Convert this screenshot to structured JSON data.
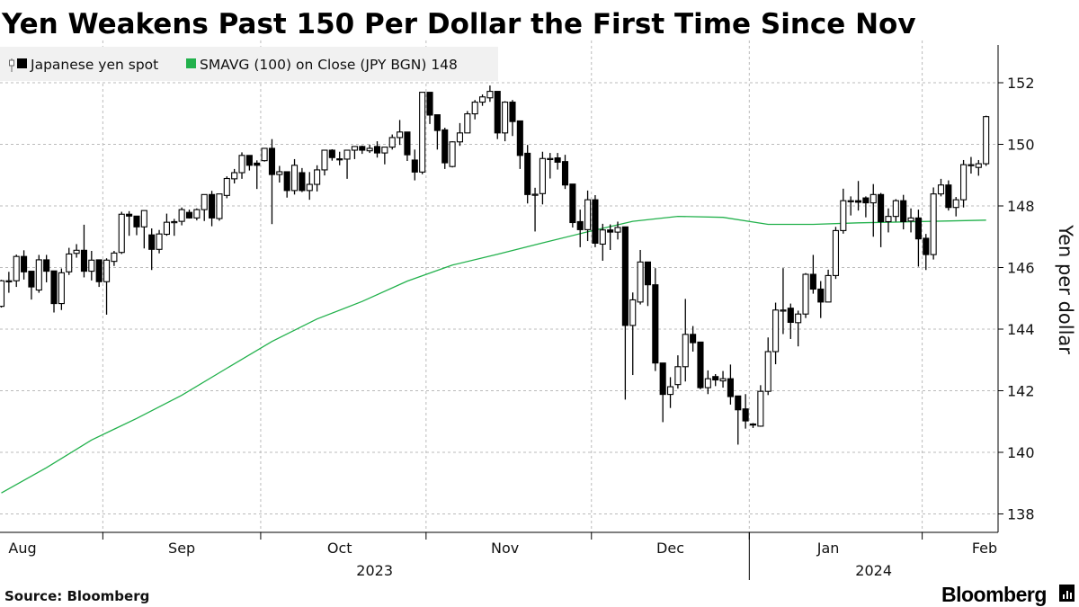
{
  "title": "Yen Weakens Past 150 Per Dollar the First Time Since Nov",
  "legend": [
    {
      "label": "Japanese yen spot",
      "color": "#000000",
      "icon": "candlestick-icon"
    },
    {
      "label": "SMAVG (100)  on Close (JPY BGN) 148",
      "color": "#22b14c"
    }
  ],
  "source": "Source: Bloomberg",
  "logo": "Bloomberg",
  "chart_data": {
    "type": "candlestick",
    "title": "Yen Weakens Past 150 Per Dollar the First Time Since Nov",
    "ylabel": "Yen per dollar",
    "ylim": [
      137.5,
      153.5
    ],
    "yticks": [
      "138",
      "140",
      "142",
      "144",
      "146",
      "148",
      "150",
      "152"
    ],
    "y_axis_side": "right",
    "grid": true,
    "legend_position": "top-left",
    "x_months": [
      {
        "label": "Aug",
        "month": "2023-08"
      },
      {
        "label": "Sep",
        "month": "2023-09"
      },
      {
        "label": "Oct",
        "month": "2023-10"
      },
      {
        "label": "Nov",
        "month": "2023-11"
      },
      {
        "label": "Dec",
        "month": "2023-12"
      },
      {
        "label": "Jan",
        "month": "2024-01"
      },
      {
        "label": "Feb",
        "month": "2024-02"
      }
    ],
    "x_years": [
      "2023",
      "2024"
    ],
    "up_color": "#ffffff",
    "down_color": "#000000",
    "sma_color": "#22b14c",
    "candles_fields": [
      "date",
      "open",
      "high",
      "low",
      "close"
    ],
    "candles": [
      [
        "2023-08-14",
        144.74,
        145.6,
        144.7,
        145.57
      ],
      [
        "2023-08-15",
        145.57,
        145.86,
        145.18,
        145.57
      ],
      [
        "2023-08-16",
        145.57,
        146.42,
        145.37,
        146.36
      ],
      [
        "2023-08-17",
        146.36,
        146.56,
        145.61,
        145.86
      ],
      [
        "2023-08-18",
        145.88,
        145.88,
        144.96,
        145.37
      ],
      [
        "2023-08-21",
        145.27,
        146.41,
        145.18,
        146.25
      ],
      [
        "2023-08-22",
        146.25,
        146.41,
        145.52,
        145.88
      ],
      [
        "2023-08-23",
        145.89,
        145.89,
        144.54,
        144.83
      ],
      [
        "2023-08-24",
        144.83,
        145.97,
        144.62,
        145.83
      ],
      [
        "2023-08-25",
        145.86,
        146.64,
        145.76,
        146.44
      ],
      [
        "2023-08-28",
        146.46,
        146.76,
        146.32,
        146.56
      ],
      [
        "2023-08-29",
        146.56,
        147.39,
        145.68,
        145.88
      ],
      [
        "2023-08-30",
        145.88,
        146.54,
        145.58,
        146.24
      ],
      [
        "2023-08-31",
        146.25,
        146.25,
        145.37,
        145.54
      ],
      [
        "2023-09-01",
        145.54,
        146.3,
        144.47,
        146.24
      ],
      [
        "2023-09-04",
        146.2,
        146.54,
        146.05,
        146.47
      ],
      [
        "2023-09-05",
        146.49,
        147.81,
        146.44,
        147.73
      ],
      [
        "2023-09-06",
        147.73,
        147.83,
        147.03,
        147.67
      ],
      [
        "2023-09-07",
        147.67,
        147.67,
        147.05,
        147.32
      ],
      [
        "2023-09-08",
        147.32,
        147.85,
        146.62,
        147.85
      ],
      [
        "2023-09-11",
        147.06,
        147.27,
        145.92,
        146.59
      ],
      [
        "2023-09-12",
        146.59,
        147.22,
        146.46,
        147.09
      ],
      [
        "2023-09-13",
        147.08,
        147.75,
        147.03,
        147.47
      ],
      [
        "2023-09-14",
        147.47,
        147.58,
        147.03,
        147.49
      ],
      [
        "2023-09-15",
        147.5,
        147.95,
        147.37,
        147.88
      ],
      [
        "2023-09-18",
        147.79,
        147.88,
        147.59,
        147.61
      ],
      [
        "2023-09-19",
        147.61,
        147.92,
        147.53,
        147.88
      ],
      [
        "2023-09-20",
        147.88,
        148.37,
        147.51,
        148.37
      ],
      [
        "2023-09-21",
        148.37,
        148.49,
        147.34,
        147.61
      ],
      [
        "2023-09-22",
        147.59,
        148.39,
        147.52,
        148.39
      ],
      [
        "2023-09-25",
        148.34,
        148.96,
        148.25,
        148.89
      ],
      [
        "2023-09-26",
        148.88,
        149.2,
        148.73,
        149.08
      ],
      [
        "2023-09-27",
        149.08,
        149.74,
        148.88,
        149.64
      ],
      [
        "2023-09-28",
        149.64,
        149.64,
        149.15,
        149.32
      ],
      [
        "2023-09-29",
        149.39,
        149.48,
        148.55,
        149.32
      ],
      [
        "2023-10-02",
        149.47,
        149.87,
        149.44,
        149.87
      ],
      [
        "2023-10-03",
        149.87,
        150.17,
        147.41,
        149.02
      ],
      [
        "2023-10-04",
        149.02,
        149.3,
        148.76,
        149.11
      ],
      [
        "2023-10-05",
        149.11,
        149.11,
        148.27,
        148.5
      ],
      [
        "2023-10-06",
        148.5,
        149.52,
        148.37,
        149.32
      ],
      [
        "2023-10-09",
        149.08,
        149.23,
        148.45,
        148.5
      ],
      [
        "2023-10-10",
        148.5,
        149.1,
        148.2,
        148.7
      ],
      [
        "2023-10-11",
        148.7,
        149.32,
        148.47,
        149.17
      ],
      [
        "2023-10-12",
        149.17,
        149.81,
        148.99,
        149.81
      ],
      [
        "2023-10-13",
        149.81,
        149.84,
        149.47,
        149.57
      ],
      [
        "2023-10-16",
        149.53,
        149.76,
        149.32,
        149.52
      ],
      [
        "2023-10-17",
        149.52,
        149.81,
        148.88,
        149.81
      ],
      [
        "2023-10-18",
        149.81,
        149.93,
        149.52,
        149.93
      ],
      [
        "2023-10-19",
        149.93,
        149.96,
        149.69,
        149.81
      ],
      [
        "2023-10-20",
        149.79,
        149.99,
        149.72,
        149.87
      ],
      [
        "2023-10-23",
        149.93,
        150.1,
        149.57,
        149.72
      ],
      [
        "2023-10-24",
        149.72,
        149.91,
        149.35,
        149.91
      ],
      [
        "2023-10-25",
        149.91,
        150.32,
        149.83,
        150.22
      ],
      [
        "2023-10-26",
        150.22,
        150.79,
        149.98,
        150.4
      ],
      [
        "2023-10-27",
        150.4,
        150.4,
        149.46,
        149.66
      ],
      [
        "2023-10-30",
        149.49,
        149.83,
        148.83,
        149.1
      ],
      [
        "2023-10-31",
        149.1,
        151.69,
        149.03,
        151.69
      ],
      [
        "2023-11-01",
        151.69,
        151.69,
        150.66,
        150.95
      ],
      [
        "2023-11-02",
        150.96,
        150.96,
        149.83,
        150.45
      ],
      [
        "2023-11-03",
        150.47,
        150.54,
        149.2,
        149.4
      ],
      [
        "2023-11-06",
        149.28,
        150.1,
        149.25,
        150.08
      ],
      [
        "2023-11-07",
        150.08,
        150.69,
        149.95,
        150.37
      ],
      [
        "2023-11-08",
        150.37,
        151.08,
        150.37,
        150.99
      ],
      [
        "2023-11-09",
        150.99,
        151.44,
        150.81,
        151.37
      ],
      [
        "2023-11-10",
        151.37,
        151.62,
        151.25,
        151.54
      ],
      [
        "2023-11-13",
        151.51,
        151.91,
        151.38,
        151.72
      ],
      [
        "2023-11-14",
        151.72,
        151.72,
        150.17,
        150.37
      ],
      [
        "2023-11-15",
        150.37,
        151.4,
        150.1,
        151.37
      ],
      [
        "2023-11-16",
        151.37,
        151.44,
        150.27,
        150.74
      ],
      [
        "2023-11-17",
        150.76,
        150.76,
        149.2,
        149.64
      ],
      [
        "2023-11-20",
        149.71,
        149.98,
        148.08,
        148.37
      ],
      [
        "2023-11-21",
        148.37,
        148.59,
        147.17,
        148.38
      ],
      [
        "2023-11-22",
        148.4,
        149.76,
        148.05,
        149.54
      ],
      [
        "2023-11-23",
        149.53,
        149.72,
        148.89,
        149.54
      ],
      [
        "2023-11-24",
        149.56,
        149.72,
        149.18,
        149.42
      ],
      [
        "2023-11-27",
        149.44,
        149.66,
        148.55,
        148.68
      ],
      [
        "2023-11-28",
        148.71,
        148.71,
        147.3,
        147.46
      ],
      [
        "2023-11-29",
        147.49,
        147.88,
        146.66,
        147.23
      ],
      [
        "2023-11-30",
        147.23,
        148.5,
        146.86,
        148.2
      ],
      [
        "2023-12-01",
        148.2,
        148.35,
        146.66,
        146.79
      ],
      [
        "2023-12-04",
        146.76,
        147.42,
        146.22,
        147.22
      ],
      [
        "2023-12-05",
        147.22,
        147.4,
        146.57,
        147.15
      ],
      [
        "2023-12-06",
        147.15,
        147.49,
        146.91,
        147.3
      ],
      [
        "2023-12-07",
        147.32,
        147.32,
        141.71,
        144.12
      ],
      [
        "2023-12-08",
        144.12,
        145.19,
        142.51,
        144.95
      ],
      [
        "2023-12-11",
        144.88,
        146.57,
        144.8,
        146.18
      ],
      [
        "2023-12-12",
        146.18,
        146.18,
        144.75,
        145.44
      ],
      [
        "2023-12-13",
        145.44,
        145.98,
        142.64,
        142.9
      ],
      [
        "2023-12-14",
        142.9,
        142.9,
        140.98,
        141.88
      ],
      [
        "2023-12-15",
        141.88,
        142.44,
        141.44,
        142.13
      ],
      [
        "2023-12-18",
        142.2,
        143.15,
        142.07,
        142.78
      ],
      [
        "2023-12-19",
        142.78,
        144.98,
        142.3,
        143.83
      ],
      [
        "2023-12-20",
        143.83,
        144.1,
        143.27,
        143.56
      ],
      [
        "2023-12-21",
        143.58,
        143.58,
        142.05,
        142.1
      ],
      [
        "2023-12-22",
        142.1,
        142.66,
        141.89,
        142.39
      ],
      [
        "2023-12-25",
        142.46,
        142.54,
        142.15,
        142.35
      ],
      [
        "2023-12-26",
        142.32,
        142.64,
        142.1,
        142.39
      ],
      [
        "2023-12-27",
        142.39,
        142.85,
        141.55,
        141.81
      ],
      [
        "2023-12-28",
        141.83,
        141.83,
        140.25,
        141.38
      ],
      [
        "2023-12-29",
        141.41,
        141.89,
        140.77,
        141.02
      ],
      [
        "2024-01-01",
        140.92,
        140.95,
        140.79,
        140.9
      ],
      [
        "2024-01-02",
        140.85,
        142.18,
        140.83,
        141.98
      ],
      [
        "2024-01-03",
        141.98,
        143.73,
        141.86,
        143.27
      ],
      [
        "2024-01-04",
        143.27,
        144.86,
        142.86,
        144.62
      ],
      [
        "2024-01-05",
        144.62,
        145.98,
        143.84,
        144.62
      ],
      [
        "2024-01-08",
        144.68,
        144.83,
        143.68,
        144.22
      ],
      [
        "2024-01-09",
        144.21,
        144.6,
        143.44,
        144.49
      ],
      [
        "2024-01-10",
        144.49,
        145.82,
        144.36,
        145.78
      ],
      [
        "2024-01-11",
        145.78,
        146.41,
        145.15,
        145.3
      ],
      [
        "2024-01-12",
        145.3,
        145.56,
        144.36,
        144.88
      ],
      [
        "2024-01-15",
        144.88,
        145.93,
        144.88,
        145.74
      ],
      [
        "2024-01-16",
        145.74,
        147.32,
        145.63,
        147.2
      ],
      [
        "2024-01-17",
        147.2,
        148.56,
        147.1,
        148.17
      ],
      [
        "2024-01-18",
        148.17,
        148.31,
        147.69,
        148.17
      ],
      [
        "2024-01-19",
        148.17,
        148.81,
        147.85,
        148.12
      ],
      [
        "2024-01-22",
        148.26,
        148.31,
        147.63,
        148.1
      ],
      [
        "2024-01-23",
        148.1,
        148.71,
        147.0,
        148.37
      ],
      [
        "2024-01-24",
        148.37,
        148.42,
        146.66,
        147.49
      ],
      [
        "2024-01-25",
        147.49,
        147.92,
        147.14,
        147.66
      ],
      [
        "2024-01-26",
        147.66,
        148.22,
        147.49,
        148.17
      ],
      [
        "2024-01-29",
        148.17,
        148.36,
        147.24,
        147.49
      ],
      [
        "2024-01-30",
        147.51,
        147.92,
        147.14,
        147.61
      ],
      [
        "2024-01-31",
        147.61,
        147.88,
        146.03,
        146.93
      ],
      [
        "2024-02-01",
        146.95,
        147.09,
        145.92,
        146.42
      ],
      [
        "2024-02-02",
        146.42,
        148.6,
        146.26,
        148.39
      ],
      [
        "2024-02-05",
        148.39,
        148.88,
        148.31,
        148.68
      ],
      [
        "2024-02-06",
        148.68,
        148.83,
        147.85,
        147.95
      ],
      [
        "2024-02-07",
        147.95,
        148.29,
        147.66,
        148.2
      ],
      [
        "2024-02-08",
        148.2,
        149.49,
        147.95,
        149.34
      ],
      [
        "2024-02-09",
        149.34,
        149.59,
        149.05,
        149.34
      ],
      [
        "2024-02-12",
        149.25,
        149.49,
        148.98,
        149.37
      ],
      [
        "2024-02-13",
        149.37,
        150.93,
        149.3,
        150.9
      ]
    ],
    "sma": [
      [
        "2023-08-14",
        138.68
      ],
      [
        "2023-08-22",
        139.5
      ],
      [
        "2023-08-30",
        140.4
      ],
      [
        "2023-09-07",
        141.1
      ],
      [
        "2023-09-15",
        141.85
      ],
      [
        "2023-09-25",
        142.73
      ],
      [
        "2023-10-03",
        143.6
      ],
      [
        "2023-10-11",
        144.33
      ],
      [
        "2023-10-19",
        144.9
      ],
      [
        "2023-10-27",
        145.56
      ],
      [
        "2023-11-06",
        146.08
      ],
      [
        "2023-11-14",
        146.43
      ],
      [
        "2023-11-22",
        146.8
      ],
      [
        "2023-11-30",
        147.16
      ],
      [
        "2023-12-08",
        147.5
      ],
      [
        "2023-12-18",
        147.66
      ],
      [
        "2023-12-26",
        147.63
      ],
      [
        "2024-01-03",
        147.4
      ],
      [
        "2024-01-11",
        147.4
      ],
      [
        "2024-01-19",
        147.45
      ],
      [
        "2024-01-29",
        147.48
      ],
      [
        "2024-02-13",
        147.54
      ]
    ]
  }
}
